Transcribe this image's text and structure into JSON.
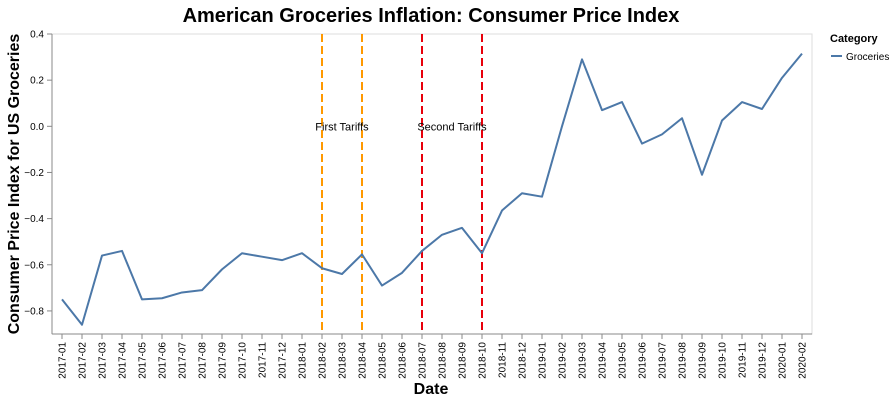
{
  "chart_data": {
    "type": "line",
    "title": "American Groceries Inflation: Consumer Price Index",
    "xlabel": "Date",
    "ylabel": "Consumer Price Index for US Groceries",
    "ylim": [
      -0.9,
      0.4
    ],
    "y_ticks": [
      -0.8,
      -0.6,
      -0.4,
      -0.2,
      0.0,
      0.2,
      0.4
    ],
    "y_tick_labels": [
      "−0.8",
      "−0.6",
      "−0.4",
      "−0.2",
      "0.0",
      "0.2",
      "0.4"
    ],
    "grid": false,
    "legend": {
      "title": "Category",
      "placement": "top-right",
      "entries": [
        "Groceries"
      ]
    },
    "categories": [
      "2017-01",
      "2017-02",
      "2017-03",
      "2017-04",
      "2017-05",
      "2017-06",
      "2017-07",
      "2017-08",
      "2017-09",
      "2017-10",
      "2017-11",
      "2017-12",
      "2018-01",
      "2018-02",
      "2018-03",
      "2018-04",
      "2018-05",
      "2018-06",
      "2018-07",
      "2018-08",
      "2018-09",
      "2018-10",
      "2018-11",
      "2018-12",
      "2019-01",
      "2019-02",
      "2019-03",
      "2019-04",
      "2019-05",
      "2019-06",
      "2019-07",
      "2019-08",
      "2019-09",
      "2019-10",
      "2019-11",
      "2019-12",
      "2020-01",
      "2020-02"
    ],
    "series": [
      {
        "name": "Groceries",
        "color": "#4c78a8",
        "values": [
          -0.75,
          -0.86,
          -0.56,
          -0.54,
          -0.75,
          -0.745,
          -0.72,
          -0.71,
          -0.62,
          -0.55,
          -0.565,
          -0.58,
          -0.55,
          -0.615,
          -0.64,
          -0.555,
          -0.69,
          -0.635,
          -0.54,
          -0.47,
          -0.44,
          -0.55,
          -0.365,
          -0.29,
          -0.305,
          0.0,
          0.29,
          0.07,
          0.105,
          -0.075,
          -0.035,
          0.035,
          -0.21,
          0.025,
          0.105,
          0.075,
          0.21,
          0.315
        ]
      }
    ],
    "annotations": [
      {
        "label": "First Tariffs",
        "x_start": "2018-02",
        "x_end": "2018-04",
        "color": "#ff9900"
      },
      {
        "label": "Second Tariffs",
        "x_start": "2018-07",
        "x_end": "2018-10",
        "color": "#e8000b"
      }
    ]
  }
}
